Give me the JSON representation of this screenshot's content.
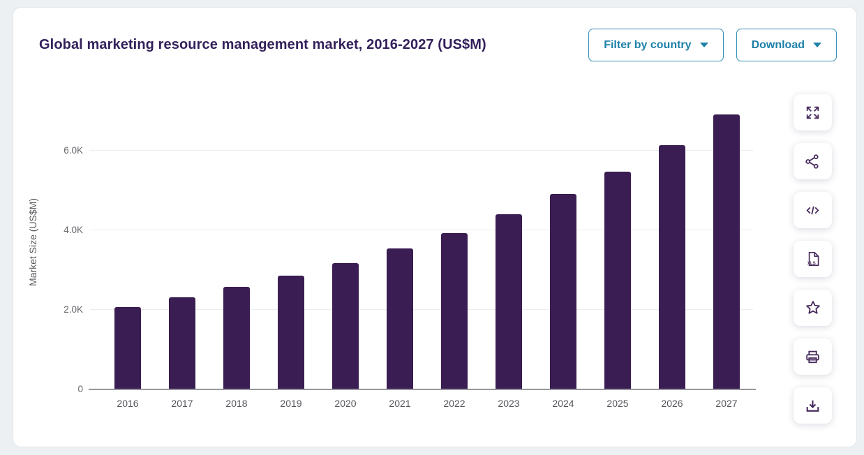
{
  "header": {
    "title": "Global marketing resource management market, 2016-2027 (US$M)",
    "buttons": [
      {
        "label": "Filter by country",
        "icon": "caret-down-icon"
      },
      {
        "label": "Download",
        "icon": "caret-down-icon"
      }
    ]
  },
  "chart_data": {
    "type": "bar",
    "title": "Global marketing resource management market, 2016-2027 (US$M)",
    "categories": [
      "2016",
      "2017",
      "2018",
      "2019",
      "2020",
      "2021",
      "2022",
      "2023",
      "2024",
      "2025",
      "2026",
      "2027"
    ],
    "values": [
      2050,
      2300,
      2560,
      2840,
      3160,
      3530,
      3920,
      4380,
      4890,
      5450,
      6130,
      6890
    ],
    "xlabel": "",
    "ylabel": "Market Size (US$M)",
    "ylim": [
      0,
      7400
    ],
    "yticks": [
      {
        "value": 0,
        "label": "0"
      },
      {
        "value": 2000,
        "label": "2.0K"
      },
      {
        "value": 4000,
        "label": "4.0K"
      },
      {
        "value": 6000,
        "label": "6.0K"
      }
    ],
    "grid": "horizontal",
    "legend": "none",
    "bar_color": "#3a1d52"
  },
  "toolbar": {
    "icons": [
      "fullscreen-icon",
      "share-icon",
      "embed-code-icon",
      "export-xls-icon",
      "favorite-icon",
      "print-icon",
      "download-icon"
    ],
    "xls_badge": "XLS"
  },
  "colors": {
    "accent_teal": "#1c80a8",
    "title_purple": "#33205a",
    "bar_purple": "#3a1d52",
    "page_background": "#edf0f2"
  }
}
